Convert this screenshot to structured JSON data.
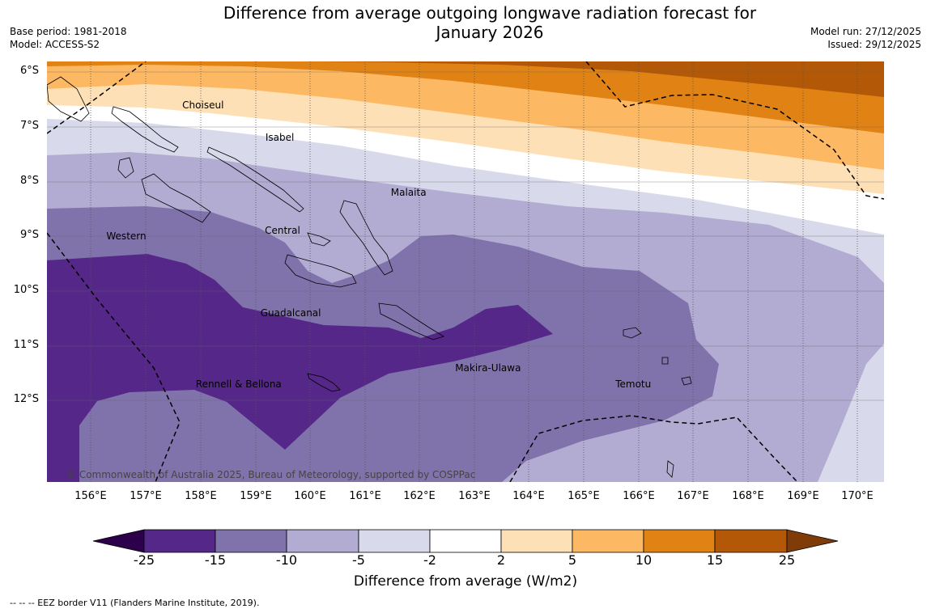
{
  "title_line1": "Difference from average outgoing longwave radiation forecast for",
  "title_line2": "January 2026",
  "meta_left": {
    "base_period": "Base period: 1981-2018",
    "model": "Model: ACCESS-S2"
  },
  "meta_right": {
    "model_run": "Model run: 27/12/2025",
    "issued": "Issued: 29/12/2025"
  },
  "lat_labels": [
    "6°S",
    "7°S",
    "8°S",
    "9°S",
    "10°S",
    "11°S",
    "12°S"
  ],
  "lon_labels": [
    "156°E",
    "157°E",
    "158°E",
    "159°E",
    "160°E",
    "161°E",
    "162°E",
    "163°E",
    "164°E",
    "165°E",
    "166°E",
    "167°E",
    "168°E",
    "169°E",
    "170°E"
  ],
  "places": [
    {
      "name": "Choiseul",
      "lon": 158.05,
      "lat": -6.6
    },
    {
      "name": "Isabel",
      "lon": 159.45,
      "lat": -7.2
    },
    {
      "name": "Malaita",
      "lon": 161.8,
      "lat": -8.2
    },
    {
      "name": "Western",
      "lon": 156.65,
      "lat": -9.0
    },
    {
      "name": "Central",
      "lon": 159.5,
      "lat": -8.9
    },
    {
      "name": "Guadalcanal",
      "lon": 159.65,
      "lat": -10.4
    },
    {
      "name": "Makira-Ulawa",
      "lon": 163.25,
      "lat": -11.4
    },
    {
      "name": "Rennell & Bellona",
      "lon": 158.7,
      "lat": -11.7
    },
    {
      "name": "Temotu",
      "lon": 165.9,
      "lat": -11.7
    }
  ],
  "copyright": "© Commonwealth of Australia 2025, Bureau of Meteorology, supported by COSPPac",
  "colorbar": {
    "title": "Difference from average (W/m2)",
    "ticks": [
      "-25",
      "-15",
      "-10",
      "-5",
      "-2",
      "2",
      "5",
      "10",
      "15",
      "25"
    ],
    "colors": [
      "#2d004b",
      "#542788",
      "#8073ac",
      "#b2abd2",
      "#d8daeb",
      "#ffffff",
      "#fee0b6",
      "#fdb863",
      "#e08214",
      "#b35806",
      "#7f3b08"
    ]
  },
  "footnote": "--  --  -- EEZ border V11 (Flanders Marine Institute, 2019).",
  "chart_data": {
    "type": "heatmap",
    "title": "Difference from average outgoing longwave radiation forecast for January 2026",
    "variable": "Outgoing longwave radiation anomaly",
    "units": "W/m2",
    "lon_range": [
      155.2,
      170.5
    ],
    "lat_range": [
      -13.5,
      -5.8
    ],
    "levels": [
      -25,
      -15,
      -10,
      -5,
      -2,
      2,
      5,
      10,
      15,
      25
    ],
    "summary": "Negative anomalies (-15 to -25) over Guadalcanal and Rennell & Bellona region; positive anomalies (5 to 25) in the north-east toward 6°S 170°E"
  }
}
